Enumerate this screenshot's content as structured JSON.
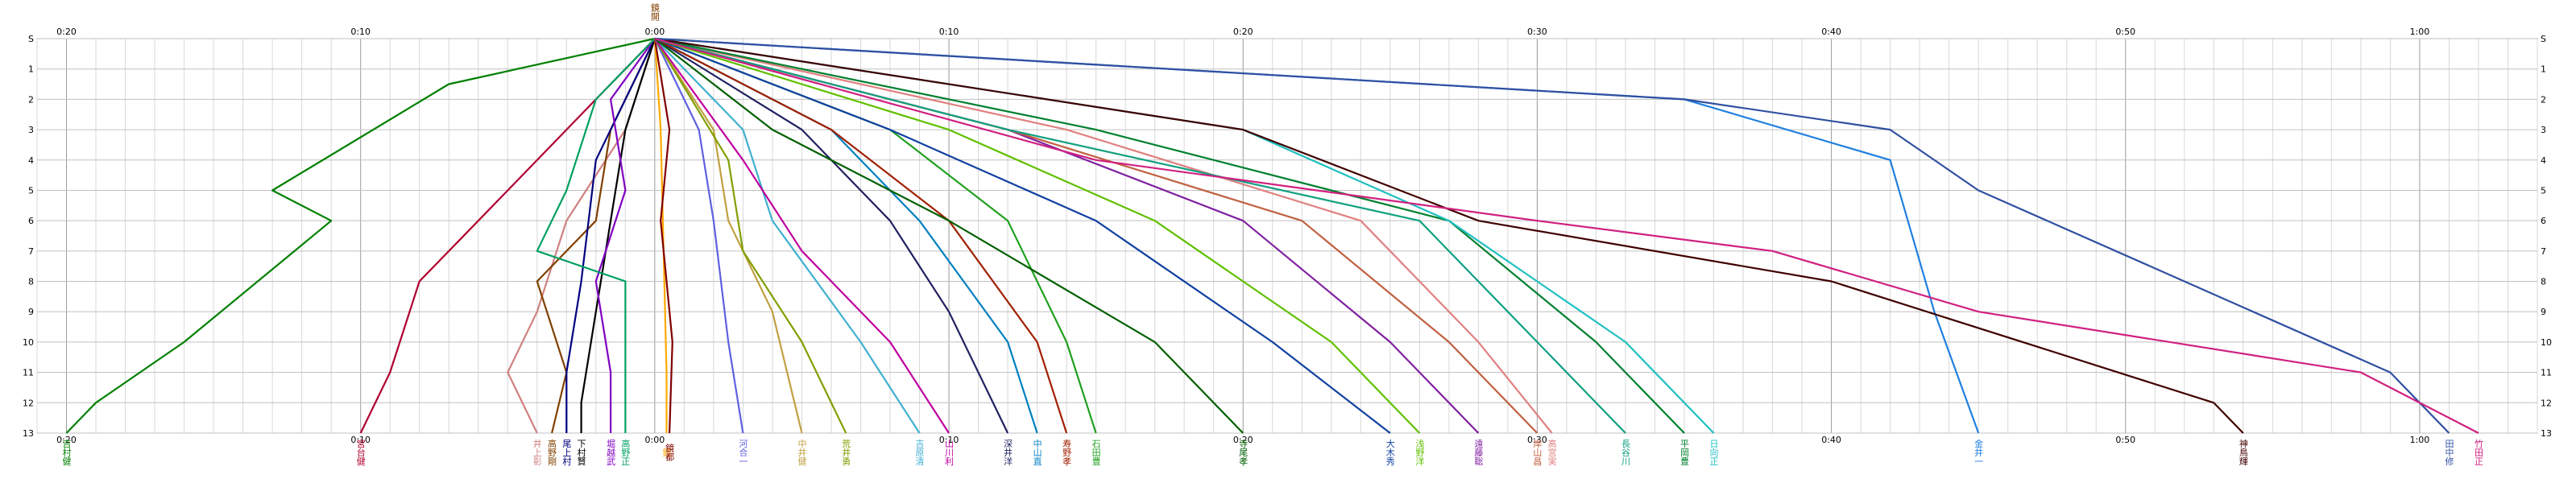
{
  "chart_data": {
    "type": "line",
    "title": "",
    "xlabel": "",
    "ylabel": "",
    "x_ticks": [
      "0:20",
      "0:10",
      "0:00",
      "0:10",
      "0:20",
      "0:30",
      "0:40",
      "0:50",
      "1:00"
    ],
    "x_tick_values": [
      -20,
      -10,
      0,
      10,
      20,
      30,
      40,
      50,
      60
    ],
    "xlim": [
      -21,
      64
    ],
    "y_ticks": [
      "S",
      "1",
      "2",
      "3",
      "4",
      "5",
      "6",
      "7",
      "8",
      "9",
      "10",
      "11",
      "12",
      "13"
    ],
    "y_tick_values": [
      0,
      1,
      2,
      3,
      4,
      5,
      6,
      7,
      8,
      9,
      10,
      11,
      12,
      13
    ],
    "ylim": [
      0,
      13
    ],
    "grid": true,
    "top_station_label": "鏡開",
    "series": [
      {
        "name": "吉村健",
        "color": "#008000",
        "x": [
          0,
          -7,
          -13,
          -11,
          -16,
          -19,
          -20
        ],
        "y": [
          0,
          1.5,
          5,
          6,
          10,
          12,
          13
        ]
      },
      {
        "name": "宮台健",
        "color": "#b00030",
        "x": [
          0,
          -2,
          -5,
          -6,
          -8,
          -9,
          -10
        ],
        "y": [
          0,
          2,
          5,
          6,
          8,
          11,
          13
        ]
      },
      {
        "name": "井上彰",
        "color": "#d08080",
        "x": [
          0,
          -1,
          -3,
          -4,
          -5,
          -4
        ],
        "y": [
          0,
          3,
          6,
          9,
          11,
          13
        ]
      },
      {
        "name": "高野剛",
        "color": "#804000",
        "x": [
          0,
          -1.5,
          -2,
          -4,
          -3,
          -3.5
        ],
        "y": [
          0,
          3,
          6,
          8,
          11,
          13
        ]
      },
      {
        "name": "尾上村",
        "color": "#000080",
        "x": [
          0,
          -1,
          -2,
          -2.5,
          -3,
          -3
        ],
        "y": [
          0,
          2,
          4,
          8,
          11,
          13
        ]
      },
      {
        "name": "下村賢",
        "color": "#000000",
        "x": [
          0,
          -1,
          -1.5,
          -2,
          -2.5,
          -2.5
        ],
        "y": [
          0,
          3,
          6,
          9,
          12,
          13
        ]
      },
      {
        "name": "堀越武",
        "color": "#8000c0",
        "x": [
          0,
          -1.5,
          -1,
          -2,
          -1.5,
          -1.5
        ],
        "y": [
          0,
          2,
          5,
          8,
          11,
          13
        ]
      },
      {
        "name": "高野正",
        "color": "#00a060",
        "x": [
          0,
          -2,
          -3,
          -4,
          -1,
          -1
        ],
        "y": [
          0,
          2,
          5,
          7,
          8,
          13
        ]
      },
      {
        "name": "鏡",
        "color": "#ffaa00",
        "x": [
          0,
          0.2,
          0.3,
          0.4,
          0.4
        ],
        "y": [
          0,
          3,
          7,
          11,
          13
        ]
      },
      {
        "name": "鏡都",
        "color": "#800000",
        "x": [
          0,
          0.5,
          0.2,
          0.6,
          0.5
        ],
        "y": [
          0,
          3,
          6,
          10,
          13
        ]
      },
      {
        "name": "河合一",
        "color": "#6060e0",
        "x": [
          0,
          1.5,
          2,
          2.5,
          3
        ],
        "y": [
          0,
          3,
          6,
          10,
          13
        ]
      },
      {
        "name": "中井健",
        "color": "#c0a040",
        "x": [
          0,
          2,
          2.5,
          4,
          5
        ],
        "y": [
          0,
          3,
          6,
          9,
          13
        ]
      },
      {
        "name": "荒井勇",
        "color": "#80a000",
        "x": [
          0,
          2.5,
          3,
          5,
          6.5
        ],
        "y": [
          0,
          4,
          7,
          10,
          13
        ]
      },
      {
        "name": "吉原清",
        "color": "#40b0d0",
        "x": [
          0,
          3,
          4,
          7,
          9
        ],
        "y": [
          0,
          3,
          6,
          10,
          13
        ]
      },
      {
        "name": "山川利",
        "color": "#c000a0",
        "x": [
          0,
          3,
          5,
          8,
          10
        ],
        "y": [
          0,
          4,
          7,
          10,
          13
        ]
      },
      {
        "name": "深井洋",
        "color": "#202060",
        "x": [
          0,
          5,
          8,
          10,
          12
        ],
        "y": [
          0,
          3,
          6,
          9,
          13
        ]
      },
      {
        "name": "中山直",
        "color": "#0080c0",
        "x": [
          0,
          6,
          9,
          12,
          13
        ],
        "y": [
          0,
          3,
          6,
          10,
          13
        ]
      },
      {
        "name": "寿野孝",
        "color": "#a02000",
        "x": [
          0,
          6,
          10,
          13,
          14
        ],
        "y": [
          0,
          3,
          6,
          10,
          13
        ]
      },
      {
        "name": "石田豊",
        "color": "#20a020",
        "x": [
          0,
          8,
          12,
          14,
          15
        ],
        "y": [
          0,
          3,
          6,
          10,
          13
        ]
      },
      {
        "name": "寺尾孝",
        "color": "#006000",
        "x": [
          0,
          4,
          10,
          17,
          20
        ],
        "y": [
          0,
          3,
          6,
          10,
          13
        ]
      },
      {
        "name": "大木秀",
        "color": "#1040a0",
        "x": [
          0,
          8,
          15,
          21,
          25
        ],
        "y": [
          0,
          3,
          6,
          10,
          13
        ]
      },
      {
        "name": "浅野洋",
        "color": "#60c000",
        "x": [
          0,
          10,
          17,
          23,
          26
        ],
        "y": [
          0,
          3,
          6,
          10,
          13
        ]
      },
      {
        "name": "遠藤聡",
        "color": "#8020a0",
        "x": [
          0,
          12,
          20,
          25,
          28
        ],
        "y": [
          0,
          3,
          6,
          10,
          13
        ]
      },
      {
        "name": "岸山昌",
        "color": "#c06040",
        "x": [
          0,
          12,
          22,
          27,
          30
        ],
        "y": [
          0,
          3,
          6,
          10,
          13
        ]
      },
      {
        "name": "高宮実",
        "color": "#e08080",
        "x": [
          0,
          14,
          24,
          28,
          30.5
        ],
        "y": [
          0,
          3,
          6,
          10,
          13
        ]
      },
      {
        "name": "長谷川",
        "color": "#10a080",
        "x": [
          0,
          12,
          26,
          30,
          33
        ],
        "y": [
          0,
          3,
          6,
          10,
          13
        ]
      },
      {
        "name": "平岡豊",
        "color": "#008030",
        "x": [
          0,
          15,
          27,
          32,
          35
        ],
        "y": [
          0,
          3,
          6,
          10,
          13
        ]
      },
      {
        "name": "日向正",
        "color": "#20c0c0",
        "x": [
          0,
          20,
          27,
          33,
          36
        ],
        "y": [
          0,
          3,
          6,
          10,
          13
        ]
      },
      {
        "name": "金井一",
        "color": "#2080e0",
        "x": [
          0,
          35,
          42,
          43.5,
          45
        ],
        "y": [
          0,
          2,
          4,
          9,
          13
        ]
      },
      {
        "name": "神鳥輝",
        "color": "#400000",
        "x": [
          0,
          20,
          28,
          40,
          53,
          54
        ],
        "y": [
          0,
          3,
          6,
          8,
          12,
          13
        ]
      },
      {
        "name": "田中修",
        "color": "#3050a0",
        "x": [
          0,
          35,
          42,
          45,
          52,
          59,
          61
        ],
        "y": [
          0,
          2,
          3,
          5,
          8,
          11,
          13
        ]
      },
      {
        "name": "竹田正",
        "color": "#d02080",
        "x": [
          0,
          15,
          30,
          38,
          45,
          58,
          62
        ],
        "y": [
          0,
          4,
          6,
          7,
          9,
          11,
          13
        ]
      }
    ]
  }
}
